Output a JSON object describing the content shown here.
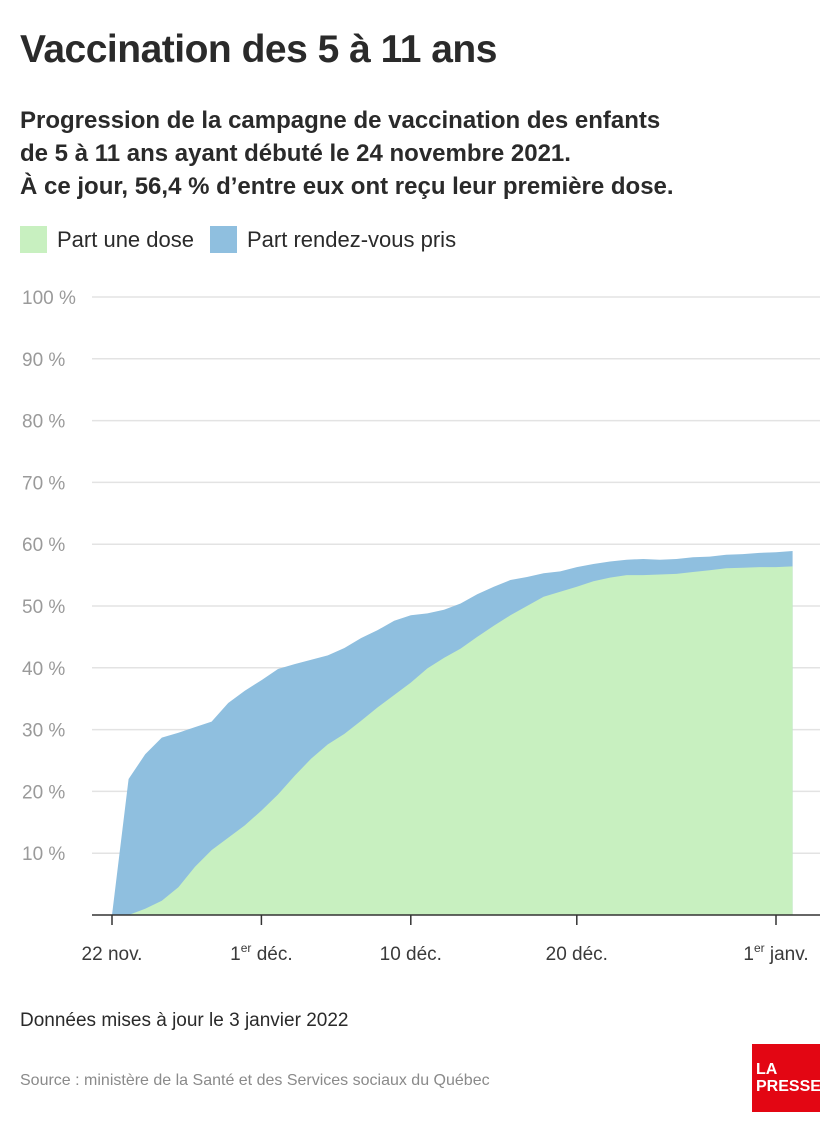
{
  "title": "Vaccination des 5 à 11 ans",
  "subtitle": [
    "Progression de la campagne de vaccination des enfants",
    "de 5 à 11 ans ayant débuté le 24 novembre 2021.",
    "À ce jour, 56,4 % d’entre eux ont reçu leur première dose."
  ],
  "legend": [
    {
      "label": "Part une dose",
      "color": "#c8f0c0"
    },
    {
      "label": "Part rendez-vous pris",
      "color": "#8fbfdf"
    }
  ],
  "footer": {
    "note": "Données mises à jour le 3 janvier 2022",
    "source": "Source : ministère de la Santé et des Services sociaux du Québec",
    "logo_line1": "LA",
    "logo_line2": "PRESSE"
  },
  "chart_data": {
    "type": "area",
    "stacked": false,
    "x_unit": "day",
    "x": [
      "2021-11-22",
      "2021-11-23",
      "2021-11-24",
      "2021-11-25",
      "2021-11-26",
      "2021-11-27",
      "2021-11-28",
      "2021-11-29",
      "2021-11-30",
      "2021-12-01",
      "2021-12-02",
      "2021-12-03",
      "2021-12-04",
      "2021-12-05",
      "2021-12-06",
      "2021-12-07",
      "2021-12-08",
      "2021-12-09",
      "2021-12-10",
      "2021-12-11",
      "2021-12-12",
      "2021-12-13",
      "2021-12-14",
      "2021-12-15",
      "2021-12-16",
      "2021-12-17",
      "2021-12-18",
      "2021-12-19",
      "2021-12-20",
      "2021-12-21",
      "2021-12-22",
      "2021-12-23",
      "2021-12-24",
      "2021-12-25",
      "2021-12-26",
      "2021-12-27",
      "2021-12-28",
      "2021-12-29",
      "2021-12-30",
      "2021-12-31",
      "2022-01-01",
      "2022-01-02"
    ],
    "series": [
      {
        "name": "Part rendez-vous pris",
        "color": "#8fbfdf",
        "values": [
          0,
          22,
          26,
          28.7,
          29.5,
          30.4,
          31.3,
          34.3,
          36.3,
          38,
          39.8,
          40.6,
          41.3,
          42,
          43.2,
          44.8,
          46.1,
          47.6,
          48.5,
          48.8,
          49.4,
          50.4,
          51.9,
          53.1,
          54.2,
          54.7,
          55.3,
          55.6,
          56.3,
          56.8,
          57.2,
          57.5,
          57.6,
          57.5,
          57.6,
          57.9,
          58,
          58.3,
          58.4,
          58.6,
          58.7,
          58.9
        ]
      },
      {
        "name": "Part une dose",
        "color": "#c8f0c0",
        "values": [
          0,
          0,
          1,
          2.3,
          4.5,
          7.8,
          10.5,
          12.5,
          14.5,
          16.9,
          19.5,
          22.5,
          25.3,
          27.6,
          29.3,
          31.4,
          33.6,
          35.6,
          37.6,
          39.9,
          41.6,
          43.1,
          45,
          46.8,
          48.5,
          50,
          51.5,
          52.3,
          53.1,
          54,
          54.6,
          55,
          55,
          55.1,
          55.2,
          55.5,
          55.8,
          56.1,
          56.2,
          56.3,
          56.3,
          56.4
        ]
      }
    ],
    "ylim": [
      0,
      100
    ],
    "yticks": [
      10,
      20,
      30,
      40,
      50,
      60,
      70,
      80,
      90,
      100
    ],
    "ytick_labels": [
      "10 %",
      "20 %",
      "30 %",
      "40 %",
      "50 %",
      "60 %",
      "70 %",
      "80 %",
      "90 %",
      "100 %"
    ],
    "xticks": [
      {
        "x": "2021-11-22",
        "label": "22 nov.",
        "sup": ""
      },
      {
        "x": "2021-12-01",
        "label": "1",
        "sup": "er",
        "rest": " déc."
      },
      {
        "x": "2021-12-10",
        "label": "10 déc.",
        "sup": ""
      },
      {
        "x": "2021-12-20",
        "label": "20 déc.",
        "sup": ""
      },
      {
        "x": "2022-01-01",
        "label": "1",
        "sup": "er",
        "rest": " janv."
      }
    ],
    "grid": true,
    "legend_position": "top-left"
  }
}
